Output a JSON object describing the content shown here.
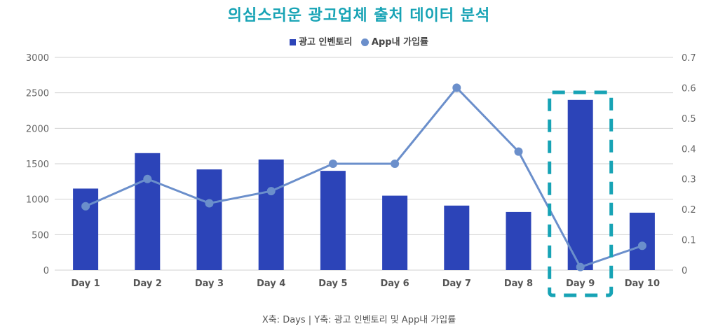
{
  "chart_data": {
    "type": "bar+line",
    "title": "의심스러운 광고업체 출처 데이터 분석",
    "categories": [
      "Day 1",
      "Day 2",
      "Day 3",
      "Day 4",
      "Day 5",
      "Day 6",
      "Day 7",
      "Day 8",
      "Day 9",
      "Day 10"
    ],
    "series": [
      {
        "name": "광고 인벤토리",
        "type": "bar",
        "axis": "left",
        "values": [
          1150,
          1650,
          1420,
          1560,
          1400,
          1050,
          910,
          820,
          2400,
          810
        ]
      },
      {
        "name": "App내 가입률",
        "type": "line",
        "axis": "right",
        "values": [
          0.21,
          0.3,
          0.22,
          0.26,
          0.35,
          0.35,
          0.6,
          0.39,
          0.01,
          0.08
        ]
      }
    ],
    "ylim_left": [
      0,
      3000
    ],
    "yticks_left": [
      "0",
      "500",
      "1000",
      "1500",
      "2000",
      "2500",
      "3000"
    ],
    "ylim_right": [
      0,
      0.7
    ],
    "yticks_right": [
      "0",
      "0.1",
      "0.2",
      "0.3",
      "0.4",
      "0.5",
      "0.6",
      "0.7"
    ],
    "highlight_category": "Day 9",
    "axis_caption": "X축: Days | Y축:  광고 인벤토리 및 App내 가입률",
    "grid": true,
    "legend_position": "top-center"
  },
  "colors": {
    "bar": "#2c44b8",
    "line": "#6b8fcb",
    "highlight": "#17a3b5",
    "title": "#17a3b5"
  }
}
